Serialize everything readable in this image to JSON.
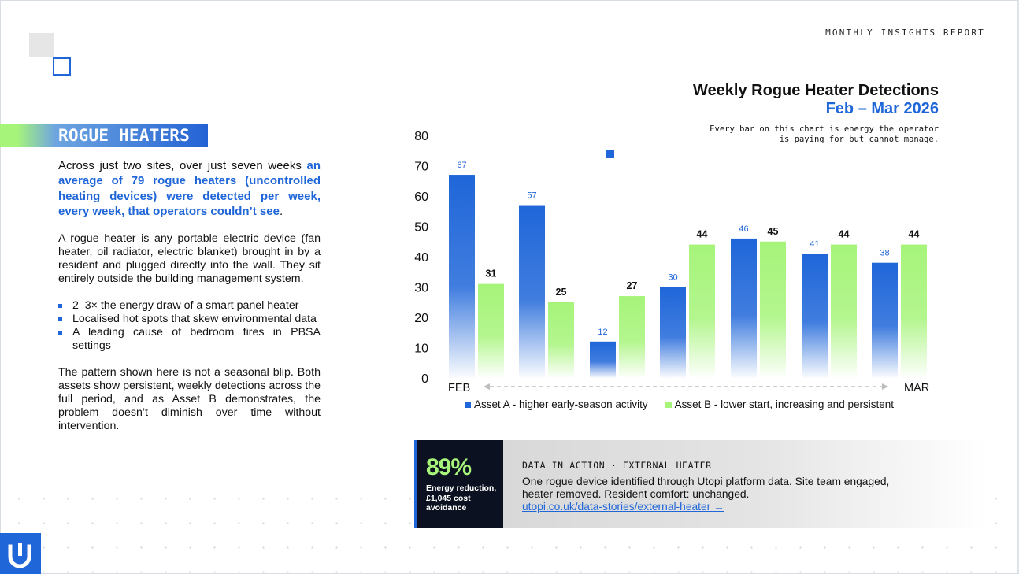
{
  "header": {
    "report_label": "MONTHLY INSIGHTS REPORT"
  },
  "section": {
    "heading": "ROGUE HEATERS",
    "intro_plain": "Across just two sites, over just seven weeks ",
    "intro_highlight": "an average of 79 rogue heaters (uncontrolled heating devices) were detected per week, every week, that operators couldn’t see",
    "intro_end": ".",
    "definition": "A rogue heater is any portable electric device (fan heater, oil radiator, electric blanket) brought in by a resident and plugged directly into the wall. They sit entirely outside the building management system.",
    "bullets": [
      "2–3× the energy draw of a smart panel heater",
      "Localised hot spots that skew environmental data",
      "A leading cause of bedroom fires in PBSA settings"
    ],
    "conclusion": "The pattern shown here is not a seasonal blip. Both assets show persistent, weekly detections across the full period, and as Asset B demonstrates, the problem doesn’t diminish over time without intervention."
  },
  "chart_data": {
    "type": "bar",
    "title": "Weekly Rogue Heater Detections",
    "subtitle": "Feb – Mar 2026",
    "note": "Every bar on this chart is energy the operator is paying for but cannot manage.",
    "x_start_label": "FEB",
    "x_end_label": "MAR",
    "ylim": [
      0,
      80
    ],
    "yticks": [
      0,
      10,
      20,
      30,
      40,
      50,
      60,
      70,
      80
    ],
    "grid": false,
    "legend_position": "bottom",
    "series": [
      {
        "name": "Asset A - higher early-season activity",
        "color": "#1f66d9",
        "values": [
          67,
          57,
          12,
          30,
          46,
          41,
          38
        ]
      },
      {
        "name": "Asset B - lower start, increasing and persistent",
        "color": "#a6f47a",
        "values": [
          31,
          25,
          27,
          44,
          45,
          44,
          44
        ]
      }
    ]
  },
  "card": {
    "stat_value": "89%",
    "stat_label": "Energy reduction, £1,045 cost avoidance",
    "kicker": "DATA IN ACTION · EXTERNAL HEATER",
    "body": "One rogue device identified through Utopi platform data. Site team engaged, heater removed. Resident comfort: unchanged.",
    "link": "utopi.co.uk/data-stories/external-heater →"
  },
  "colors": {
    "accent_blue": "#1f66d9",
    "accent_green": "#a6f47a",
    "card_dark": "#0b1120"
  },
  "logo": {
    "icon": "utopi-u-logo-icon"
  }
}
